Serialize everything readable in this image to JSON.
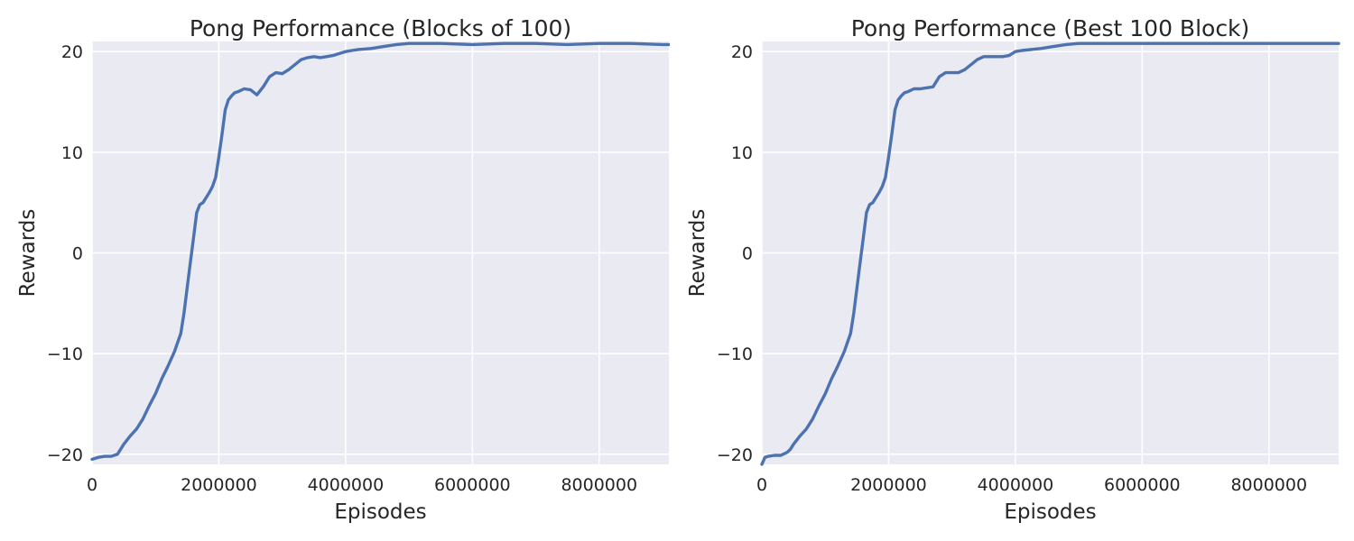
{
  "chart_data": [
    {
      "type": "line",
      "title": "Pong Performance (Blocks of 100)",
      "xlabel": "Episodes",
      "ylabel": "Rewards",
      "xlim": [
        0,
        9100000
      ],
      "ylim": [
        -21,
        21
      ],
      "x_ticks": [
        0,
        2000000,
        4000000,
        6000000,
        8000000
      ],
      "x_tick_labels": [
        "0",
        "2000000",
        "4000000",
        "6000000",
        "8000000"
      ],
      "y_ticks": [
        -20,
        -10,
        0,
        10,
        20
      ],
      "y_tick_labels": [
        "−20",
        "−10",
        "0",
        "10",
        "20"
      ],
      "grid": true,
      "series": [
        {
          "color": "#4c72b0",
          "x": [
            0,
            100000,
            200000,
            300000,
            400000,
            450000,
            500000,
            600000,
            700000,
            800000,
            900000,
            1000000,
            1100000,
            1200000,
            1300000,
            1400000,
            1450000,
            1500000,
            1550000,
            1600000,
            1650000,
            1700000,
            1750000,
            1800000,
            1850000,
            1900000,
            1950000,
            2000000,
            2050000,
            2100000,
            2150000,
            2200000,
            2250000,
            2300000,
            2400000,
            2500000,
            2600000,
            2700000,
            2800000,
            2900000,
            3000000,
            3100000,
            3200000,
            3300000,
            3400000,
            3500000,
            3600000,
            3700000,
            3800000,
            3900000,
            4000000,
            4100000,
            4200000,
            4400000,
            4600000,
            4800000,
            5000000,
            5500000,
            6000000,
            6500000,
            7000000,
            7500000,
            8000000,
            8500000,
            9000000,
            9100000
          ],
          "y": [
            -20.5,
            -20.3,
            -20.2,
            -20.2,
            -20.0,
            -19.5,
            -19.0,
            -18.2,
            -17.5,
            -16.5,
            -15.2,
            -14.0,
            -12.5,
            -11.2,
            -9.8,
            -8.0,
            -6.0,
            -3.5,
            -1.0,
            1.5,
            4.0,
            4.8,
            5.0,
            5.5,
            6.0,
            6.6,
            7.5,
            9.5,
            11.8,
            14.2,
            15.2,
            15.6,
            15.9,
            16.0,
            16.3,
            16.2,
            15.7,
            16.5,
            17.5,
            17.9,
            17.8,
            18.2,
            18.7,
            19.2,
            19.4,
            19.5,
            19.4,
            19.5,
            19.6,
            19.8,
            20.0,
            20.1,
            20.2,
            20.3,
            20.5,
            20.7,
            20.8,
            20.8,
            20.7,
            20.8,
            20.8,
            20.7,
            20.8,
            20.8,
            20.7,
            20.7
          ]
        }
      ]
    },
    {
      "type": "line",
      "title": "Pong Performance (Best 100 Block)",
      "xlabel": "Episodes",
      "ylabel": "Rewards",
      "xlim": [
        0,
        9100000
      ],
      "ylim": [
        -21,
        21
      ],
      "x_ticks": [
        0,
        2000000,
        4000000,
        6000000,
        8000000
      ],
      "x_tick_labels": [
        "0",
        "2000000",
        "4000000",
        "6000000",
        "8000000"
      ],
      "y_ticks": [
        -20,
        -10,
        0,
        10,
        20
      ],
      "y_tick_labels": [
        "−20",
        "−10",
        "0",
        "10",
        "20"
      ],
      "grid": true,
      "series": [
        {
          "color": "#4c72b0",
          "x": [
            0,
            50000,
            100000,
            200000,
            300000,
            400000,
            450000,
            500000,
            600000,
            700000,
            800000,
            900000,
            1000000,
            1100000,
            1200000,
            1300000,
            1400000,
            1450000,
            1500000,
            1550000,
            1600000,
            1650000,
            1700000,
            1750000,
            1800000,
            1850000,
            1900000,
            1950000,
            2000000,
            2050000,
            2100000,
            2150000,
            2200000,
            2250000,
            2300000,
            2400000,
            2500000,
            2700000,
            2800000,
            2900000,
            3100000,
            3200000,
            3300000,
            3400000,
            3500000,
            3800000,
            3900000,
            4000000,
            4100000,
            4400000,
            4600000,
            4800000,
            5000000,
            6000000,
            7000000,
            8000000,
            9100000
          ],
          "y": [
            -21.0,
            -20.3,
            -20.2,
            -20.1,
            -20.1,
            -19.8,
            -19.5,
            -19.0,
            -18.2,
            -17.5,
            -16.5,
            -15.2,
            -14.0,
            -12.5,
            -11.2,
            -9.8,
            -8.0,
            -6.0,
            -3.5,
            -1.0,
            1.5,
            4.0,
            4.8,
            5.0,
            5.5,
            6.0,
            6.6,
            7.5,
            9.5,
            11.8,
            14.2,
            15.2,
            15.6,
            15.9,
            16.0,
            16.3,
            16.3,
            16.5,
            17.5,
            17.9,
            17.9,
            18.2,
            18.7,
            19.2,
            19.5,
            19.5,
            19.6,
            20.0,
            20.1,
            20.3,
            20.5,
            20.7,
            20.8,
            20.8,
            20.8,
            20.8,
            20.8
          ]
        }
      ]
    }
  ]
}
